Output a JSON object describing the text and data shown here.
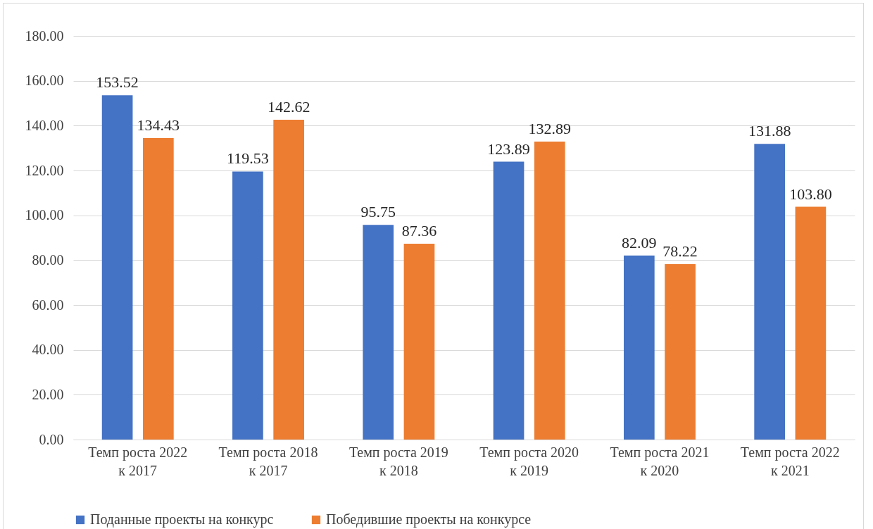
{
  "chart_data": {
    "type": "bar",
    "categories": [
      "Темп роста 2022 к 2017",
      "Темп роста 2018 к 2017",
      "Темп роста 2019 к 2018",
      "Темп роста 2020 к 2019",
      "Темп роста 2021 к 2020",
      "Темп роста 2022 к 2021"
    ],
    "series": [
      {
        "name": "Поданные проекты на конкурс",
        "color": "#4472c4",
        "values": [
          153.52,
          119.53,
          95.75,
          123.89,
          82.09,
          131.88
        ],
        "value_labels": [
          "153.52",
          "119.53",
          "95.75",
          "123.89",
          "82.09",
          "131.88"
        ]
      },
      {
        "name": "Победившие проекты на конкурсе",
        "color": "#ed7d31",
        "values": [
          134.43,
          142.62,
          87.36,
          132.89,
          78.22,
          103.8
        ],
        "value_labels": [
          "134.43",
          "142.62",
          "87.36",
          "132.89",
          "78.22",
          "103.80"
        ]
      }
    ],
    "ylim": [
      0,
      180
    ],
    "yticks": [
      {
        "value": 0,
        "label": "0.00"
      },
      {
        "value": 20,
        "label": "20.00"
      },
      {
        "value": 40,
        "label": "40.00"
      },
      {
        "value": 60,
        "label": "60.00"
      },
      {
        "value": 80,
        "label": "80.00"
      },
      {
        "value": 100,
        "label": "100.00"
      },
      {
        "value": 120,
        "label": "120.00"
      },
      {
        "value": 140,
        "label": "140.00"
      },
      {
        "value": 160,
        "label": "160.00"
      },
      {
        "value": 180,
        "label": "180.00"
      }
    ],
    "grid": "y",
    "legend": "bottom"
  }
}
